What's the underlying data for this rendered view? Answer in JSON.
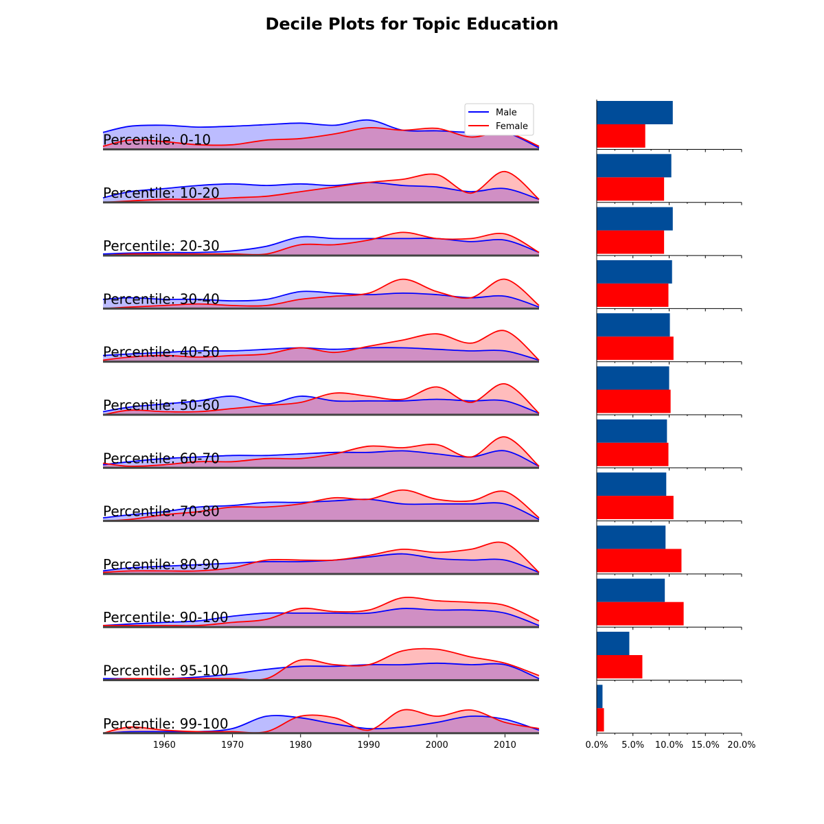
{
  "chart_data": {
    "type": "ridgeline",
    "title": "Decile Plots for Topic Education",
    "legend": {
      "placement": "top-right",
      "entries": [
        "Male",
        "Female"
      ]
    },
    "colors": {
      "male_line": "#0000ff",
      "female_line": "#ff0000",
      "male_fill": "#bcbcff",
      "female_fill": "#ffbcbc",
      "overlap_fill": "#d08fc4",
      "male_bar": "#004c99",
      "female_bar": "#ff0000",
      "baseline": "#444444"
    },
    "x_axis": {
      "range": [
        1951,
        2015
      ],
      "ticks": [
        "1960",
        "1970",
        "1980",
        "1990",
        "2000",
        "2010"
      ],
      "tick_values": [
        1960,
        1970,
        1980,
        1990,
        2000,
        2010
      ]
    },
    "bar_axis": {
      "range": [
        0,
        20
      ],
      "ticks": [
        "0.0%",
        "5.0%",
        "10.0%",
        "15.0%",
        "20.0%"
      ],
      "tick_values": [
        0,
        5,
        10,
        15,
        20
      ]
    },
    "density_x": [
      1951,
      1955,
      1960,
      1965,
      1970,
      1975,
      1980,
      1985,
      1990,
      1995,
      2000,
      2005,
      2010,
      2015
    ],
    "panels": [
      {
        "label": "Percentile: 0-10",
        "male_pct": 10.5,
        "female_pct": 6.7,
        "male": [
          0.55,
          0.75,
          0.78,
          0.72,
          0.75,
          0.8,
          0.85,
          0.78,
          0.95,
          0.62,
          0.6,
          0.55,
          0.55,
          0.05
        ],
        "female": [
          0.1,
          0.3,
          0.25,
          0.15,
          0.15,
          0.3,
          0.35,
          0.5,
          0.7,
          0.62,
          0.68,
          0.4,
          0.55,
          0.1
        ]
      },
      {
        "label": "Percentile: 10-20",
        "male_pct": 10.3,
        "female_pct": 9.3,
        "male": [
          0.15,
          0.35,
          0.45,
          0.55,
          0.6,
          0.55,
          0.6,
          0.55,
          0.65,
          0.55,
          0.5,
          0.35,
          0.45,
          0.1
        ],
        "female": [
          0.0,
          0.05,
          0.1,
          0.1,
          0.15,
          0.2,
          0.35,
          0.5,
          0.65,
          0.75,
          0.9,
          0.3,
          1.0,
          0.1
        ]
      },
      {
        "label": "Percentile: 20-30",
        "male_pct": 10.5,
        "female_pct": 9.3,
        "male": [
          0.05,
          0.08,
          0.1,
          0.1,
          0.15,
          0.3,
          0.6,
          0.55,
          0.55,
          0.55,
          0.55,
          0.45,
          0.5,
          0.1
        ],
        "female": [
          0.0,
          0.05,
          0.05,
          0.05,
          0.05,
          0.05,
          0.35,
          0.35,
          0.5,
          0.75,
          0.55,
          0.55,
          0.7,
          0.1
        ]
      },
      {
        "label": "Percentile: 30-40",
        "male_pct": 10.4,
        "female_pct": 9.9,
        "male": [
          0.3,
          0.35,
          0.3,
          0.3,
          0.25,
          0.3,
          0.55,
          0.5,
          0.45,
          0.5,
          0.45,
          0.35,
          0.4,
          0.05
        ],
        "female": [
          0.0,
          0.05,
          0.1,
          0.15,
          0.1,
          0.1,
          0.3,
          0.4,
          0.5,
          0.95,
          0.55,
          0.35,
          0.95,
          0.1
        ]
      },
      {
        "label": "Percentile: 40-50",
        "male_pct": 10.1,
        "female_pct": 10.6,
        "male": [
          0.2,
          0.25,
          0.3,
          0.35,
          0.35,
          0.4,
          0.45,
          0.4,
          0.45,
          0.45,
          0.4,
          0.35,
          0.35,
          0.05
        ],
        "female": [
          0.05,
          0.15,
          0.2,
          0.15,
          0.2,
          0.25,
          0.45,
          0.3,
          0.5,
          0.7,
          0.9,
          0.6,
          1.0,
          0.05
        ]
      },
      {
        "label": "Percentile: 50-60",
        "male_pct": 10.0,
        "female_pct": 10.2,
        "male": [
          0.1,
          0.25,
          0.35,
          0.45,
          0.6,
          0.35,
          0.6,
          0.45,
          0.45,
          0.45,
          0.5,
          0.45,
          0.45,
          0.05
        ],
        "female": [
          0.0,
          0.15,
          0.1,
          0.1,
          0.2,
          0.3,
          0.4,
          0.7,
          0.6,
          0.5,
          0.9,
          0.4,
          1.0,
          0.05
        ]
      },
      {
        "label": "Percentile: 60-70",
        "male_pct": 9.7,
        "female_pct": 9.9,
        "male": [
          0.1,
          0.2,
          0.3,
          0.35,
          0.4,
          0.4,
          0.45,
          0.5,
          0.5,
          0.55,
          0.45,
          0.35,
          0.55,
          0.05
        ],
        "female": [
          0.15,
          0.05,
          0.1,
          0.2,
          0.2,
          0.3,
          0.3,
          0.45,
          0.7,
          0.65,
          0.75,
          0.35,
          1.0,
          0.05
        ]
      },
      {
        "label": "Percentile: 70-80",
        "male_pct": 9.6,
        "female_pct": 10.6,
        "male": [
          0.1,
          0.2,
          0.3,
          0.45,
          0.5,
          0.6,
          0.6,
          0.65,
          0.7,
          0.55,
          0.55,
          0.55,
          0.55,
          0.05
        ],
        "female": [
          0.0,
          0.05,
          0.2,
          0.3,
          0.45,
          0.45,
          0.55,
          0.75,
          0.7,
          1.0,
          0.7,
          0.65,
          0.95,
          0.1
        ]
      },
      {
        "label": "Percentile: 80-90",
        "male_pct": 9.5,
        "female_pct": 11.7,
        "male": [
          0.1,
          0.2,
          0.25,
          0.3,
          0.35,
          0.4,
          0.4,
          0.45,
          0.55,
          0.65,
          0.5,
          0.45,
          0.45,
          0.05
        ],
        "female": [
          0.05,
          0.1,
          0.1,
          0.1,
          0.2,
          0.45,
          0.45,
          0.45,
          0.6,
          0.8,
          0.7,
          0.8,
          1.0,
          0.05
        ]
      },
      {
        "label": "Percentile: 90-100",
        "male_pct": 9.4,
        "female_pct": 12.0,
        "male": [
          0.05,
          0.1,
          0.15,
          0.2,
          0.35,
          0.45,
          0.45,
          0.45,
          0.45,
          0.6,
          0.55,
          0.55,
          0.45,
          0.05
        ],
        "female": [
          0.05,
          0.05,
          0.05,
          0.05,
          0.15,
          0.25,
          0.6,
          0.5,
          0.55,
          0.95,
          0.85,
          0.8,
          0.7,
          0.2
        ]
      },
      {
        "label": "Percentile: 95-100",
        "male_pct": 4.5,
        "female_pct": 6.3,
        "male": [
          0.05,
          0.05,
          0.05,
          0.1,
          0.2,
          0.35,
          0.45,
          0.45,
          0.5,
          0.5,
          0.55,
          0.5,
          0.5,
          0.05
        ],
        "female": [
          0.0,
          0.05,
          0.05,
          0.05,
          0.05,
          0.05,
          0.65,
          0.5,
          0.5,
          0.95,
          1.0,
          0.75,
          0.55,
          0.15
        ]
      },
      {
        "label": "Percentile: 99-100",
        "male_pct": 0.8,
        "female_pct": 1.0,
        "male": [
          0.0,
          0.05,
          0.05,
          0.05,
          0.15,
          0.55,
          0.5,
          0.3,
          0.15,
          0.2,
          0.35,
          0.55,
          0.45,
          0.1
        ],
        "female": [
          0.0,
          0.2,
          0.1,
          0.05,
          0.05,
          0.05,
          0.55,
          0.5,
          0.1,
          0.75,
          0.55,
          0.75,
          0.35,
          0.15
        ]
      }
    ]
  }
}
